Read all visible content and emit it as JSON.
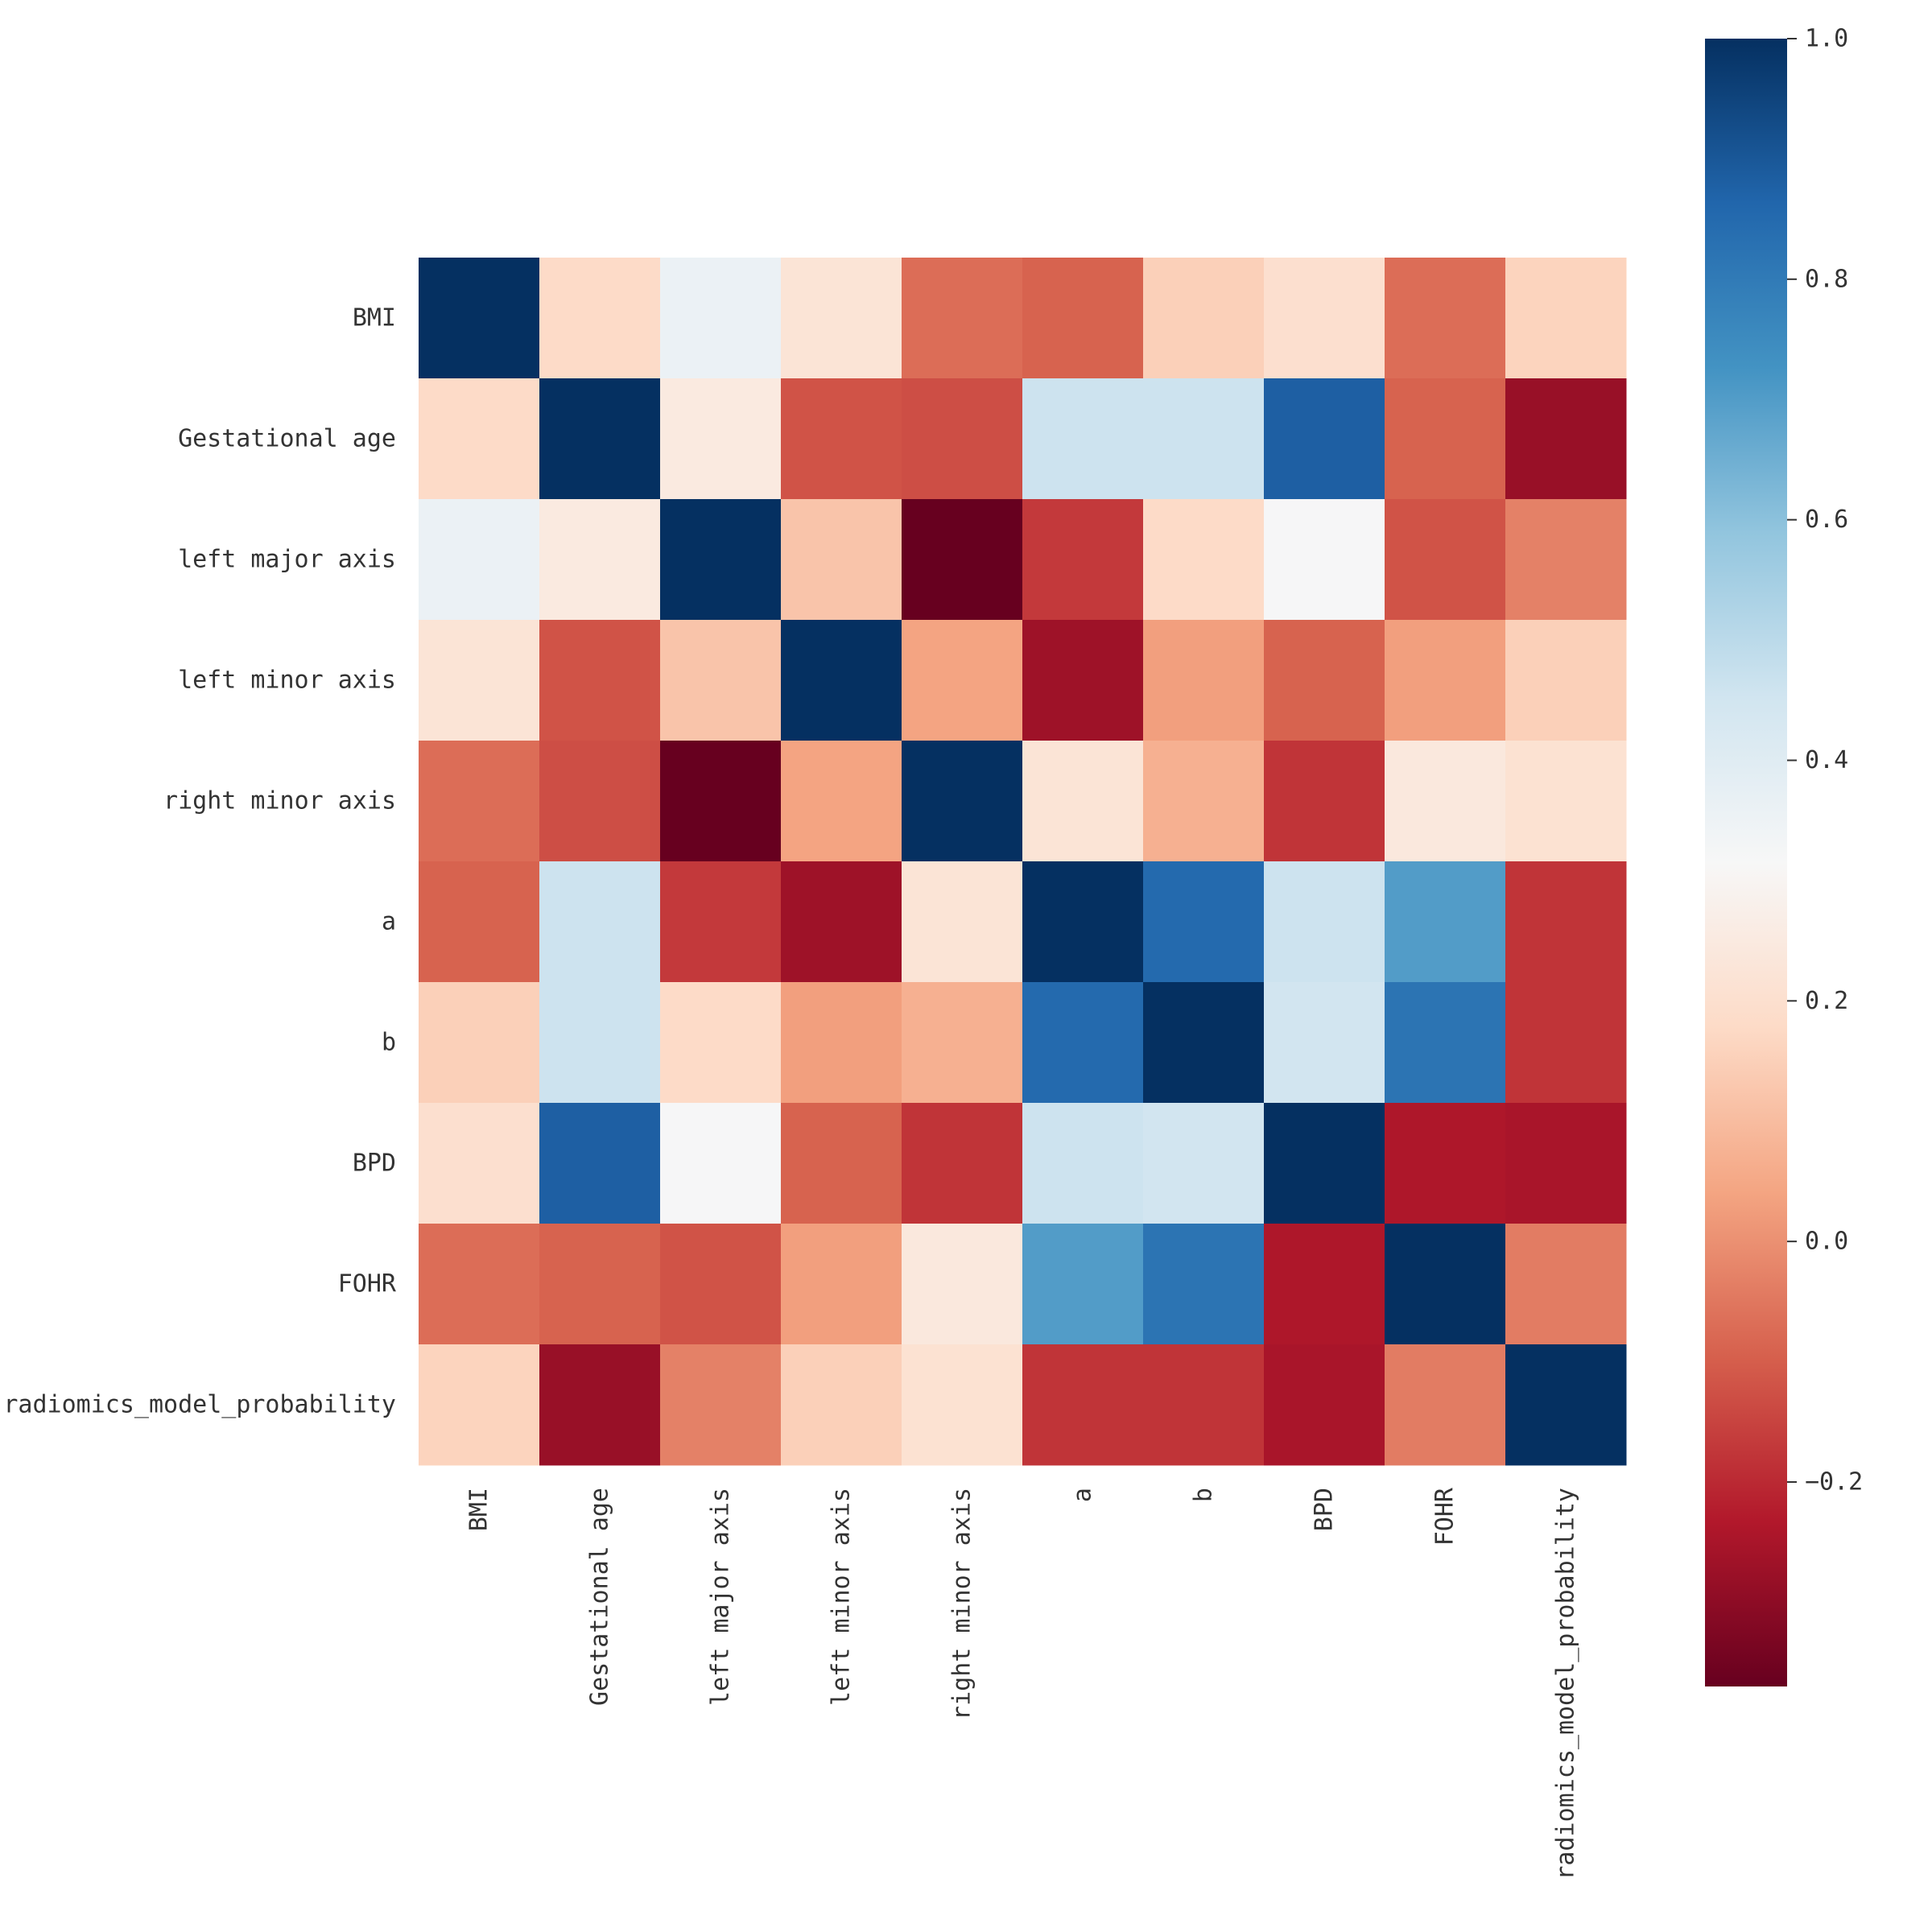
{
  "chart_data": {
    "type": "heatmap",
    "title": "",
    "xlabel": "",
    "ylabel": "",
    "labels": [
      "BMI",
      "Gestational age",
      "left major axis",
      "left minor axis",
      "right minor axis",
      "a",
      "b",
      "BPD",
      "FOHR",
      "radiomics_model_probability"
    ],
    "matrix": [
      [
        1.0,
        0.18,
        0.36,
        0.22,
        -0.07,
        -0.09,
        0.15,
        0.2,
        -0.07,
        0.16
      ],
      [
        0.18,
        1.0,
        0.25,
        -0.12,
        -0.13,
        0.46,
        0.46,
        0.88,
        -0.09,
        -0.28
      ],
      [
        0.36,
        0.25,
        1.0,
        0.12,
        -0.37,
        -0.17,
        0.18,
        0.32,
        -0.12,
        -0.03
      ],
      [
        0.22,
        -0.12,
        0.12,
        1.0,
        0.04,
        -0.27,
        0.03,
        -0.09,
        0.03,
        0.15
      ],
      [
        -0.07,
        -0.13,
        -0.37,
        0.04,
        1.0,
        0.22,
        0.07,
        -0.18,
        0.24,
        0.21
      ],
      [
        -0.09,
        0.46,
        -0.17,
        -0.27,
        0.22,
        1.0,
        0.85,
        0.46,
        0.7,
        -0.18
      ],
      [
        0.15,
        0.46,
        0.18,
        0.03,
        0.07,
        0.85,
        1.0,
        0.45,
        0.82,
        -0.18
      ],
      [
        0.2,
        0.88,
        0.32,
        -0.09,
        -0.18,
        0.46,
        0.45,
        1.0,
        -0.24,
        -0.25
      ],
      [
        -0.07,
        -0.09,
        -0.12,
        0.03,
        0.24,
        0.7,
        0.82,
        -0.24,
        1.0,
        -0.04
      ],
      [
        0.16,
        -0.28,
        -0.03,
        0.15,
        0.21,
        -0.18,
        -0.18,
        -0.25,
        -0.04,
        1.0
      ]
    ],
    "colorbar": {
      "vmin": -0.37,
      "vmax": 1.0,
      "ticks": [
        1.0,
        0.8,
        0.6,
        0.4,
        0.2,
        0.0,
        -0.2
      ],
      "tick_labels": [
        "1.0",
        "0.8",
        "0.6",
        "0.4",
        "0.2",
        "0.0",
        "−0.2"
      ],
      "colormap": "RdBu",
      "colors": [
        "#67001f",
        "#b2182b",
        "#d6604d",
        "#f4a582",
        "#fddbc7",
        "#f7f7f7",
        "#d1e5f0",
        "#92c5de",
        "#4393c3",
        "#2166ac",
        "#053061"
      ]
    }
  }
}
